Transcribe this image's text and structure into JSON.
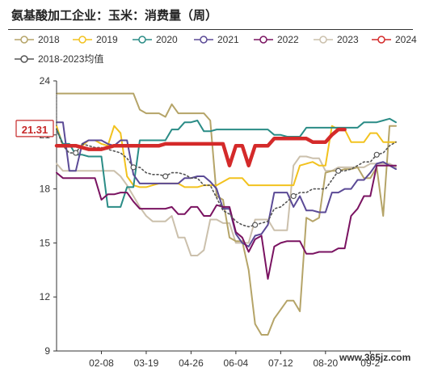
{
  "page": {
    "title": "氨基酸加工企业：玉米：消费量（周）"
  },
  "watermark": "www.365jz.com",
  "chart_data": {
    "type": "line",
    "title": "氨基酸加工企业：玉米：消费量（周）",
    "x_ticks": [
      "02-08",
      "03-19",
      "04-26",
      "06-04",
      "07-12",
      "08-20",
      "09-2"
    ],
    "y_ticks": [
      9,
      12,
      15,
      18,
      21,
      24
    ],
    "ylim": [
      9,
      24
    ],
    "grid": false,
    "legend_position": "top",
    "current_label": "21.31",
    "series": [
      {
        "name": "2018",
        "color": "#b5a468",
        "width": 2,
        "values": [
          23.3,
          23.3,
          23.3,
          23.3,
          23.3,
          23.3,
          23.3,
          23.3,
          23.3,
          23.3,
          23.3,
          23.3,
          23.3,
          22.4,
          22.2,
          22.2,
          22.2,
          22.0,
          22.7,
          22.2,
          22.2,
          22.2,
          22.2,
          22.2,
          21.8,
          17.6,
          17.4,
          15.3,
          15.1,
          15.1,
          13.5,
          10.5,
          9.9,
          9.9,
          10.8,
          11.3,
          11.8,
          11.8,
          11.2,
          16.4,
          16.2,
          16.4,
          18.9,
          19.0,
          19.0,
          19.1,
          19.1,
          19.2,
          18.6,
          18.6,
          19.2,
          16.5,
          21.5,
          21.5
        ]
      },
      {
        "name": "2019",
        "color": "#f2c21e",
        "width": 2,
        "values": [
          21.5,
          20.4,
          20.4,
          20.4,
          20.4,
          20.7,
          20.7,
          20.5,
          20.4,
          21.5,
          21.1,
          18.7,
          18.2,
          18.1,
          18.1,
          18.2,
          18.3,
          18.3,
          18.3,
          18.3,
          18.1,
          18.1,
          18.1,
          18.2,
          18.2,
          18.2,
          18.4,
          18.6,
          18.6,
          18.6,
          18.2,
          18.2,
          18.2,
          18.2,
          18.2,
          18.2,
          18.2,
          18.2,
          19.3,
          19.4,
          19.5,
          19.3,
          19.3,
          21.5,
          21.3,
          21.3,
          20.6,
          20.6,
          20.6,
          21.1,
          21.1,
          20.6,
          20.6,
          20.6
        ]
      },
      {
        "name": "2020",
        "color": "#2a8c86",
        "width": 2,
        "values": [
          21.3,
          20.5,
          20.5,
          19.9,
          19.9,
          19.8,
          19.8,
          19.8,
          17.0,
          17.0,
          17.0,
          18.1,
          18.1,
          20.7,
          20.7,
          20.7,
          20.7,
          20.7,
          21.3,
          21.3,
          21.7,
          21.7,
          21.8,
          21.2,
          21.2,
          21.3,
          21.3,
          21.3,
          21.3,
          21.3,
          21.3,
          21.3,
          21.3,
          21.3,
          21.0,
          21.0,
          20.9,
          20.9,
          20.9,
          21.4,
          21.4,
          21.4,
          21.4,
          21.4,
          21.4,
          21.4,
          21.4,
          21.4,
          21.7,
          21.7,
          21.7,
          21.8,
          21.9,
          21.7
        ]
      },
      {
        "name": "2021",
        "color": "#5b4a96",
        "width": 2,
        "values": [
          21.7,
          21.7,
          19.0,
          19.0,
          20.5,
          20.7,
          20.7,
          20.7,
          20.5,
          20.4,
          20.7,
          20.7,
          18.8,
          18.3,
          18.3,
          18.3,
          18.3,
          18.3,
          18.3,
          18.3,
          18.6,
          18.6,
          18.7,
          18.7,
          18.4,
          18.0,
          16.9,
          16.9,
          15.5,
          15.0,
          14.8,
          15.4,
          15.5,
          16.0,
          17.8,
          17.8,
          17.8,
          17.0,
          17.6,
          16.8,
          16.8,
          16.7,
          16.7,
          17.8,
          17.8,
          18.0,
          18.0,
          18.5,
          18.5,
          18.9,
          19.4,
          19.5,
          19.3,
          19.1
        ]
      },
      {
        "name": "2022",
        "color": "#7a1361",
        "width": 2,
        "values": [
          18.9,
          18.6,
          18.6,
          18.6,
          18.6,
          18.6,
          18.6,
          17.4,
          17.7,
          17.7,
          17.8,
          17.8,
          17.3,
          16.9,
          16.9,
          16.9,
          16.9,
          16.9,
          17.0,
          16.6,
          16.6,
          17.0,
          17.0,
          16.5,
          16.5,
          17.1,
          17.0,
          17.0,
          15.6,
          15.3,
          14.5,
          15.2,
          15.4,
          13.0,
          14.8,
          15.0,
          15.1,
          15.1,
          15.1,
          14.4,
          14.4,
          14.5,
          14.5,
          14.5,
          14.7,
          14.7,
          16.5,
          16.9,
          17.6,
          17.6,
          19.3,
          19.3,
          19.3,
          19.3
        ]
      },
      {
        "name": "2023",
        "color": "#cbc0ac",
        "width": 2,
        "values": [
          19.4,
          19.0,
          19.0,
          19.0,
          19.0,
          19.0,
          19.0,
          19.0,
          19.0,
          19.0,
          18.7,
          18.2,
          17.6,
          17.0,
          16.5,
          16.2,
          16.2,
          16.2,
          16.5,
          15.3,
          15.3,
          14.3,
          14.3,
          14.6,
          16.3,
          16.3,
          16.1,
          16.1,
          15.0,
          15.0,
          15.0,
          16.3,
          16.3,
          16.3,
          15.7,
          15.7,
          15.7,
          19.3,
          19.8,
          19.8,
          19.7,
          19.7,
          19.0,
          19.0,
          19.2,
          19.2,
          19.2,
          19.2,
          19.2,
          19.4,
          19.4,
          19.4,
          19.4,
          19.2
        ]
      },
      {
        "name": "2024",
        "color": "#d42a2a",
        "width": 4.5,
        "values": [
          20.4,
          20.4,
          20.4,
          20.4,
          20.3,
          20.2,
          20.2,
          20.2,
          20.3,
          20.4,
          20.4,
          20.4,
          20.4,
          20.4,
          20.4,
          20.4,
          20.4,
          20.5,
          20.5,
          20.5,
          20.5,
          20.5,
          20.5,
          20.5,
          20.5,
          20.5,
          20.5,
          19.3,
          20.4,
          20.4,
          19.3,
          20.4,
          20.4,
          20.4,
          20.8,
          20.8,
          20.8,
          20.8,
          20.8,
          20.8,
          20.6,
          20.6,
          20.6,
          21.0,
          21.3,
          21.3
        ]
      },
      {
        "name": "2018-2023均值",
        "color": "#555555",
        "width": 1.6,
        "dashed": true,
        "values": [
          21.3,
          20.4,
          20.0,
          20.0,
          20.5,
          20.4,
          20.3,
          20.3,
          20.2,
          20.1,
          20.0,
          19.7,
          19.2,
          19.2,
          18.9,
          18.8,
          18.8,
          18.7,
          18.9,
          18.9,
          18.8,
          18.6,
          18.6,
          18.2,
          18.2,
          17.5,
          16.8,
          16.6,
          16.2,
          16.0,
          15.9,
          16.0,
          16.1,
          16.2,
          16.9,
          17.0,
          17.3,
          17.6,
          17.8,
          17.8,
          18.0,
          18.0,
          18.0,
          18.5,
          19.0,
          19.0,
          19.1,
          19.3,
          19.5,
          19.5,
          19.9,
          20.0,
          20.4,
          20.6
        ]
      }
    ]
  }
}
